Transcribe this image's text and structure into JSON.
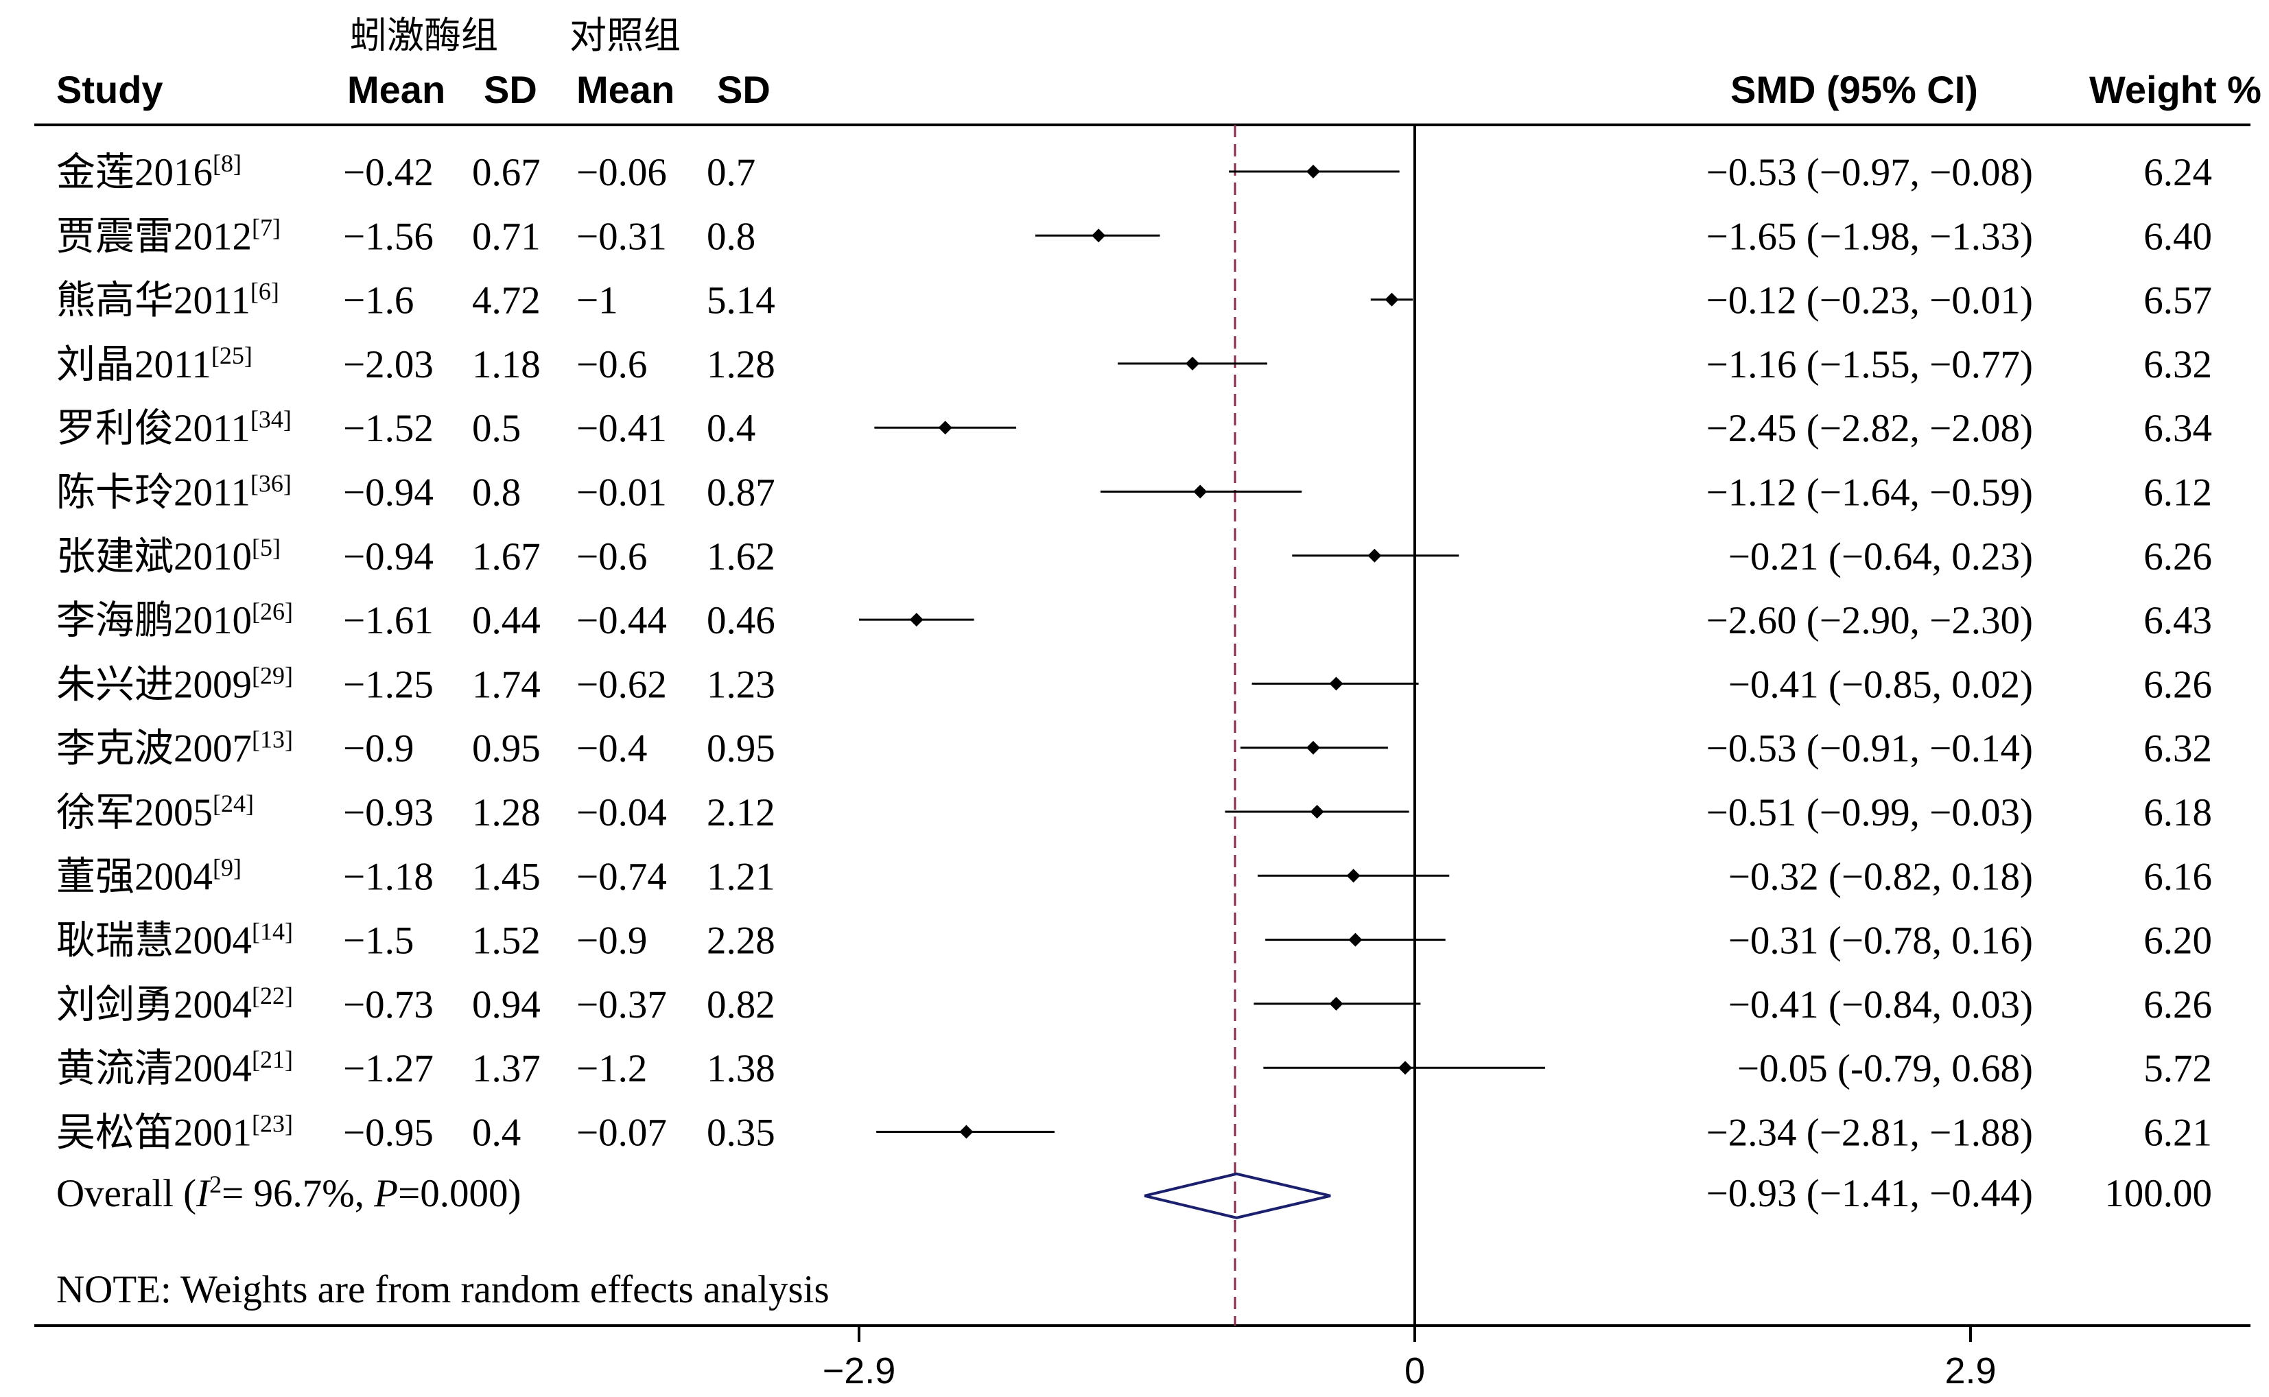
{
  "header": {
    "group1": "蚓激酶组",
    "group2": "对照组",
    "study": "Study",
    "mean1": "Mean",
    "sd1": "SD",
    "mean2": "Mean",
    "sd2": "SD",
    "smd": "SMD (95% CI)",
    "weight": "Weight %"
  },
  "chart_data": {
    "type": "forest",
    "x_ticks": [
      "−2.9",
      "0",
      "2.9"
    ],
    "xlim": [
      -2.9,
      2.9
    ],
    "null_line": 0,
    "pooled_line": -0.93,
    "studies": [
      {
        "name": "金莲2016",
        "ref": "[8]",
        "mean1": "−0.42",
        "sd1": "0.67",
        "mean2": "−0.06",
        "sd2": "0.7",
        "smd_text": "−0.53 (−0.97, −0.08)",
        "weight": "6.24",
        "smd": -0.53,
        "lo": -0.97,
        "hi": -0.08
      },
      {
        "name": "贾震雷2012",
        "ref": "[7]",
        "mean1": "−1.56",
        "sd1": "0.71",
        "mean2": "−0.31",
        "sd2": "0.8",
        "smd_text": "−1.65 (−1.98, −1.33)",
        "weight": "6.40",
        "smd": -1.65,
        "lo": -1.98,
        "hi": -1.33
      },
      {
        "name": "熊高华2011",
        "ref": "[6]",
        "mean1": "−1.6",
        "sd1": "4.72",
        "mean2": "−1",
        "sd2": "5.14",
        "smd_text": "−0.12 (−0.23, −0.01)",
        "weight": "6.57",
        "smd": -0.12,
        "lo": -0.23,
        "hi": -0.01
      },
      {
        "name": "刘晶2011",
        "ref": "[25]",
        "mean1": "−2.03",
        "sd1": "1.18",
        "mean2": "−0.6",
        "sd2": "1.28",
        "smd_text": "−1.16 (−1.55, −0.77)",
        "weight": "6.32",
        "smd": -1.16,
        "lo": -1.55,
        "hi": -0.77
      },
      {
        "name": "罗利俊2011",
        "ref": "[34]",
        "mean1": "−1.52",
        "sd1": "0.5",
        "mean2": "−0.41",
        "sd2": "0.4",
        "smd_text": "−2.45 (−2.82, −2.08)",
        "weight": "6.34",
        "smd": -2.45,
        "lo": -2.82,
        "hi": -2.08
      },
      {
        "name": "陈卡玲2011",
        "ref": "[36]",
        "mean1": "−0.94",
        "sd1": "0.8",
        "mean2": "−0.01",
        "sd2": "0.87",
        "smd_text": "−1.12 (−1.64, −0.59)",
        "weight": "6.12",
        "smd": -1.12,
        "lo": -1.64,
        "hi": -0.59
      },
      {
        "name": "张建斌2010",
        "ref": "[5]",
        "mean1": "−0.94",
        "sd1": "1.67",
        "mean2": "−0.6",
        "sd2": "1.62",
        "smd_text": "−0.21 (−0.64, 0.23)",
        "weight": "6.26",
        "smd": -0.21,
        "lo": -0.64,
        "hi": 0.23
      },
      {
        "name": "李海鹏2010",
        "ref": "[26]",
        "mean1": "−1.61",
        "sd1": "0.44",
        "mean2": "−0.44",
        "sd2": "0.46",
        "smd_text": "−2.60 (−2.90, −2.30)",
        "weight": "6.43",
        "smd": -2.6,
        "lo": -2.9,
        "hi": -2.3
      },
      {
        "name": "朱兴进2009",
        "ref": "[29]",
        "mean1": "−1.25",
        "sd1": "1.74",
        "mean2": "−0.62",
        "sd2": "1.23",
        "smd_text": "−0.41 (−0.85, 0.02)",
        "weight": "6.26",
        "smd": -0.41,
        "lo": -0.85,
        "hi": 0.02
      },
      {
        "name": "李克波2007",
        "ref": "[13]",
        "mean1": "−0.9",
        "sd1": "0.95",
        "mean2": "−0.4",
        "sd2": "0.95",
        "smd_text": "−0.53 (−0.91, −0.14)",
        "weight": "6.32",
        "smd": -0.53,
        "lo": -0.91,
        "hi": -0.14
      },
      {
        "name": "徐军2005",
        "ref": "[24]",
        "mean1": "−0.93",
        "sd1": "1.28",
        "mean2": "−0.04",
        "sd2": "2.12",
        "smd_text": "−0.51 (−0.99, −0.03)",
        "weight": "6.18",
        "smd": -0.51,
        "lo": -0.99,
        "hi": -0.03
      },
      {
        "name": "董强2004",
        "ref": "[9]",
        "mean1": "−1.18",
        "sd1": "1.45",
        "mean2": "−0.74",
        "sd2": "1.21",
        "smd_text": "−0.32 (−0.82, 0.18)",
        "weight": "6.16",
        "smd": -0.32,
        "lo": -0.82,
        "hi": 0.18
      },
      {
        "name": "耿瑞慧2004",
        "ref": "[14]",
        "mean1": "−1.5",
        "sd1": "1.52",
        "mean2": "−0.9",
        "sd2": "2.28",
        "smd_text": "−0.31 (−0.78, 0.16)",
        "weight": "6.20",
        "smd": -0.31,
        "lo": -0.78,
        "hi": 0.16
      },
      {
        "name": "刘剑勇2004",
        "ref": "[22]",
        "mean1": "−0.73",
        "sd1": "0.94",
        "mean2": "−0.37",
        "sd2": "0.82",
        "smd_text": "−0.41 (−0.84, 0.03)",
        "weight": "6.26",
        "smd": -0.41,
        "lo": -0.84,
        "hi": 0.03
      },
      {
        "name": "黄流清2004",
        "ref": "[21]",
        "mean1": "−1.27",
        "sd1": "1.37",
        "mean2": "−1.2",
        "sd2": "1.38",
        "smd_text": "−0.05 (-0.79, 0.68)",
        "weight": "5.72",
        "smd": -0.05,
        "lo": -0.79,
        "hi": 0.68
      },
      {
        "name": "吴松笛2001",
        "ref": "[23]",
        "mean1": "−0.95",
        "sd1": "0.4",
        "mean2": "−0.07",
        "sd2": "0.35",
        "smd_text": "−2.34 (−2.81, −1.88)",
        "weight": "6.21",
        "smd": -2.34,
        "lo": -2.81,
        "hi": -1.88
      }
    ],
    "overall": {
      "label": "Overall",
      "stat_i": "I",
      "stat_sup": "2",
      "stat_i_value": "= 96.7%, ",
      "stat_p": "P",
      "stat_p_value": "=0.000)",
      "smd_text": "−0.93 (−1.41, −0.44)",
      "weight": "100.00",
      "smd": -0.93,
      "lo": -1.41,
      "hi": -0.44
    },
    "note": "NOTE: Weights are from random effects analysis",
    "colors": {
      "diamond": "#1a1f6e",
      "pooled_line": "#8b2a4a",
      "ink": "#000000"
    }
  }
}
